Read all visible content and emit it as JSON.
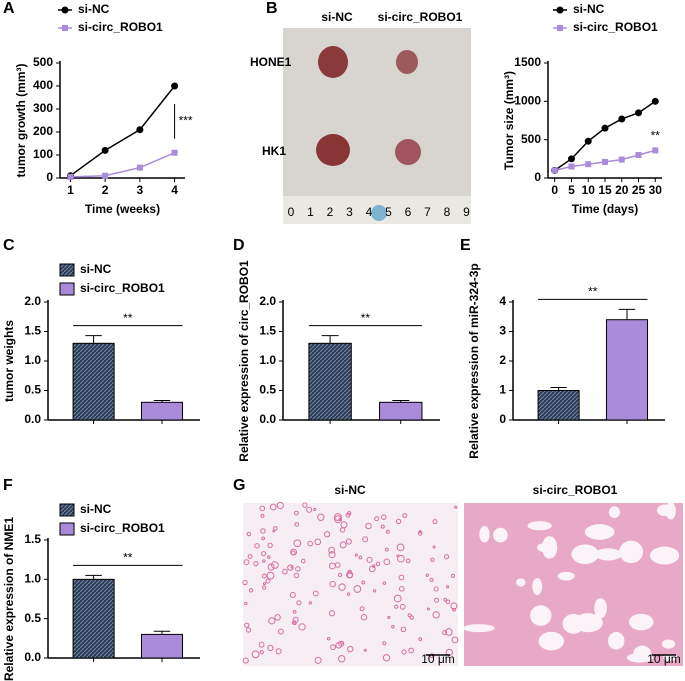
{
  "chart_data": [
    {
      "type": "line",
      "panel_label": "A",
      "y_label": "tumor growth (mm³)",
      "x_label": "Time (weeks)",
      "x": [
        1,
        2,
        3,
        4
      ],
      "xlim": [
        0.7,
        4.3
      ],
      "xticks": [
        1,
        2,
        3,
        4
      ],
      "ylim": [
        0,
        500
      ],
      "yticks": [
        0,
        100,
        200,
        300,
        400,
        500
      ],
      "series": [
        {
          "name": "si-NC",
          "color": "#000000",
          "values": [
            10,
            120,
            210,
            400
          ]
        },
        {
          "name": "si-circ_ROBO1",
          "color": "#a98bd9",
          "values": [
            5,
            10,
            45,
            110
          ]
        }
      ],
      "annotation": "***"
    },
    {
      "type": "line",
      "y_label": "Tumor size (mm³)",
      "x_label": "Time (days)",
      "x": [
        0,
        5,
        10,
        15,
        20,
        25,
        30
      ],
      "xlim": [
        -2,
        32
      ],
      "xticks": [
        0,
        5,
        10,
        15,
        20,
        25,
        30
      ],
      "ylim": [
        0,
        1500
      ],
      "yticks": [
        0,
        500,
        1000,
        1500
      ],
      "series": [
        {
          "name": "si-NC",
          "color": "#000000",
          "values": [
            100,
            250,
            480,
            650,
            770,
            850,
            1000
          ]
        },
        {
          "name": "si-circ_ROBO1",
          "color": "#a98bd9",
          "values": [
            100,
            150,
            180,
            210,
            240,
            300,
            360
          ]
        }
      ],
      "annotation": "**"
    },
    {
      "type": "bar",
      "panel_label": "C",
      "y_label": "tumor weights",
      "legend": [
        "si-NC",
        "si-circ_ROBO1"
      ],
      "values": [
        1.3,
        0.3
      ],
      "errors": [
        0.13,
        0.03
      ],
      "colors": [
        "#2e3f5a",
        "#a98bd9"
      ],
      "ylim": [
        0,
        2
      ],
      "yticks": [
        {
          "value": 0,
          "label": "0.0"
        },
        0.5,
        {
          "value": 1,
          "label": "1.0"
        },
        1.5,
        {
          "value": 2,
          "label": "2.0"
        }
      ],
      "annotation": "**"
    },
    {
      "type": "bar",
      "panel_label": "D",
      "y_label": "Relative expression of circ_ROBO1",
      "values": [
        1.3,
        0.3
      ],
      "errors": [
        0.13,
        0.03
      ],
      "colors": [
        "#2e3f5a",
        "#a98bd9"
      ],
      "ylim": [
        0,
        2
      ],
      "yticks": [
        {
          "value": 0,
          "label": "0.0"
        },
        0.5,
        {
          "value": 1,
          "label": "1.0"
        },
        1.5,
        {
          "value": 2,
          "label": "2.0"
        }
      ],
      "annotation": "**"
    },
    {
      "type": "bar",
      "panel_label": "E",
      "y_label": "Relative expression of miR-324-3p",
      "values": [
        1.0,
        3.4
      ],
      "errors": [
        0.1,
        0.35
      ],
      "colors": [
        "#2e3f5a",
        "#a98bd9"
      ],
      "ylim": [
        0,
        4
      ],
      "yticks": [
        0,
        1,
        2,
        3,
        4
      ],
      "annotation": "**"
    },
    {
      "type": "bar",
      "panel_label": "F",
      "y_label": "Relative expression of NME1",
      "legend": [
        "si-NC",
        "si-circ_ROBO1"
      ],
      "values": [
        1.0,
        0.3
      ],
      "errors": [
        0.05,
        0.04
      ],
      "colors": [
        "#2e3f5a",
        "#a98bd9"
      ],
      "ylim": [
        0,
        1.5
      ],
      "yticks": [
        {
          "value": 0,
          "label": "0.0"
        },
        0.5,
        {
          "value": 1,
          "label": "1.0"
        },
        1.5
      ],
      "annotation": "**"
    }
  ],
  "photo": {
    "panel_label": "B",
    "columns": [
      "si-NC",
      "si-circ_ROBO1"
    ],
    "rows": [
      "HONE1",
      "HK1"
    ],
    "ruler": [
      "0",
      "1",
      "2",
      "3",
      "4",
      "5",
      "6",
      "7",
      "8",
      "9"
    ]
  },
  "histology": {
    "panel_label": "G",
    "titles": [
      "si-NC",
      "si-circ_ROBO1"
    ],
    "scale": "10 μm"
  }
}
